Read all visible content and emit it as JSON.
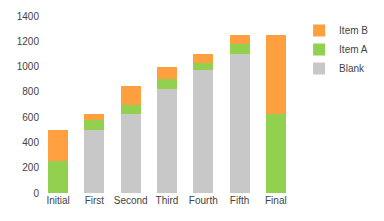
{
  "chart_data": {
    "type": "bar",
    "stacked": true,
    "categories": [
      "Initial",
      "First",
      "Second",
      "Third",
      "Fourth",
      "Fifth",
      "Final"
    ],
    "series": [
      {
        "name": "Blank",
        "color": "#c8c8c8",
        "values": [
          0,
          500,
          625,
          825,
          975,
          1100,
          0
        ]
      },
      {
        "name": "Item A",
        "color": "#92d050",
        "values": [
          250,
          75,
          75,
          75,
          50,
          75,
          625
        ]
      },
      {
        "name": "Item B",
        "color": "#ffa040",
        "values": [
          250,
          50,
          150,
          100,
          75,
          75,
          625
        ]
      }
    ],
    "ylim": [
      0,
      1400
    ],
    "yticks": [
      0,
      200,
      400,
      600,
      800,
      1000,
      1200,
      1400
    ],
    "grid": false,
    "legend": "upper right"
  }
}
